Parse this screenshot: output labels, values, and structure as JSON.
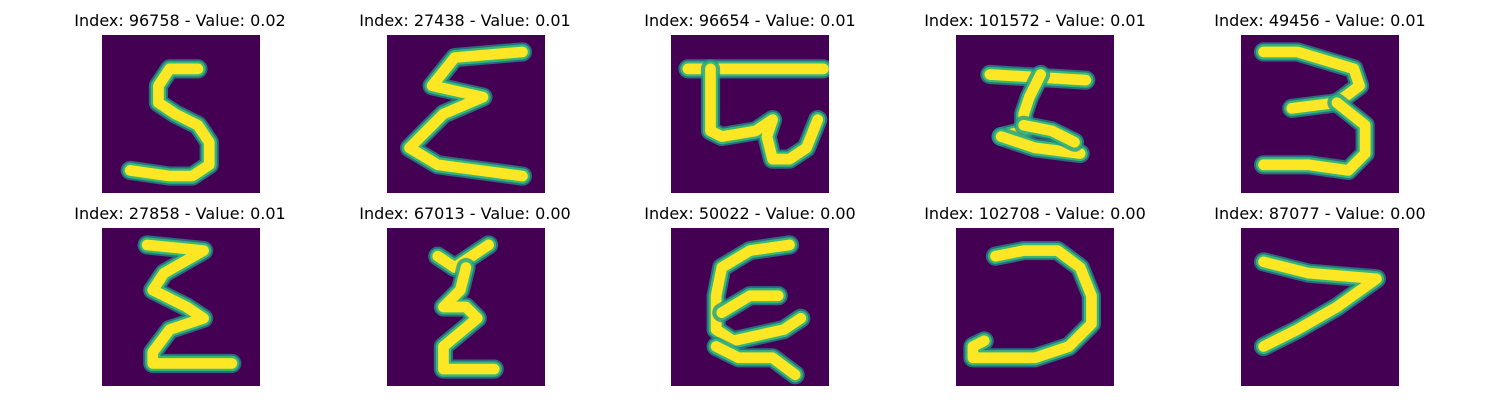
{
  "colors": {
    "background": "#440154",
    "stroke_core": "#fde725",
    "stroke_edge": "#35b779",
    "stroke_mid": "#21918c"
  },
  "panels": [
    {
      "title": "Index: 96758 - Value: 0.02"
    },
    {
      "title": "Index: 27438 - Value: 0.01"
    },
    {
      "title": "Index: 96654 - Value: 0.01"
    },
    {
      "title": "Index: 101572 - Value: 0.01"
    },
    {
      "title": "Index: 49456 - Value: 0.01"
    },
    {
      "title": "Index: 27858 - Value: 0.01"
    },
    {
      "title": "Index: 67013 - Value: 0.00"
    },
    {
      "title": "Index: 50022 - Value: 0.00"
    },
    {
      "title": "Index: 102708 - Value: 0.00"
    },
    {
      "title": "Index: 87077 - Value: 0.00"
    }
  ]
}
